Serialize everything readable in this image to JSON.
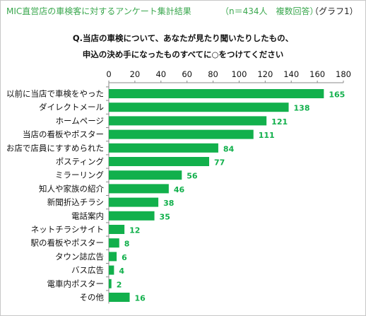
{
  "header": {
    "title": "MIC直営店の車検客に対するアンケート集計結果",
    "sample": "（n＝434人　複数回答）",
    "figure_label": "（グラフ1）"
  },
  "question": {
    "line1": "Q.当店の車検について、あなたが見たり聞いたりしたもの、",
    "line2": "申込の決め手になったものすべてに○をつけてください"
  },
  "colors": {
    "bar": "#12b04c",
    "label": "#12b04c",
    "header_text": "#3aa74e"
  },
  "chart_data": {
    "type": "bar",
    "orientation": "horizontal",
    "categories": [
      "以前に当店で車検をやった",
      "ダイレクトメール",
      "ホームページ",
      "当店の看板やポスター",
      "お店で店員にすすめられた",
      "ポスティング",
      "ミラーリング",
      "知人や家族の紹介",
      "新聞折込チラシ",
      "電話案内",
      "ネットチラシサイト",
      "駅の看板やポスター",
      "タウン誌広告",
      "バス広告",
      "電車内ポスター",
      "その他"
    ],
    "values": [
      165,
      138,
      121,
      111,
      84,
      77,
      56,
      46,
      38,
      35,
      12,
      8,
      6,
      4,
      2,
      16
    ],
    "xlim": [
      0,
      180
    ],
    "xticks": [
      0,
      20,
      40,
      60,
      80,
      100,
      120,
      140,
      160,
      180
    ],
    "grid": false,
    "data_labels": true
  }
}
